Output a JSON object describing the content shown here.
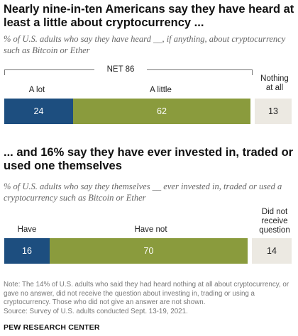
{
  "chart_data": [
    {
      "type": "bar",
      "title": "Nearly nine-in-ten Americans say they have heard at least a little about cryptocurrency ...",
      "subtitle": "% of U.S. adults who say they have heard __, if anything, about cryptocurrency such as Bitcoin or Ether",
      "net_label": "NET 86",
      "categories": [
        "A lot",
        "A little",
        "Nothing at all"
      ],
      "values": [
        24,
        62,
        13
      ],
      "value_labels": [
        "24",
        "62",
        "13"
      ],
      "colors": [
        "#1d4e7f",
        "#8a9b3d",
        "#ece9e2"
      ],
      "text_colors": [
        "#ffffff",
        "#ffffff",
        "#222222"
      ]
    },
    {
      "type": "bar",
      "title": "... and 16% say they have ever invested in, traded or used one themselves",
      "subtitle": "% of U.S. adults who say they themselves __ ever invested in, traded or used a cryptocurrency such as Bitcoin or Ether",
      "categories": [
        "Have",
        "Have not",
        "Did not receive question"
      ],
      "values": [
        16,
        70,
        14
      ],
      "value_labels": [
        "16",
        "70",
        "14"
      ],
      "colors": [
        "#1d4e7f",
        "#8a9b3d",
        "#ece9e2"
      ],
      "text_colors": [
        "#ffffff",
        "#ffffff",
        "#222222"
      ]
    }
  ],
  "footer": {
    "note": "Note: The 14% of U.S. adults who said they had heard nothing at all about cryptocurrency, or gave no answer, did not receive the question about investing in, trading or using a cryptocurrency. Those who did not give an answer are not shown.",
    "source": "Source: Survey of U.S. adults conducted Sept. 13-19, 2021.",
    "brand": "PEW RESEARCH CENTER"
  }
}
